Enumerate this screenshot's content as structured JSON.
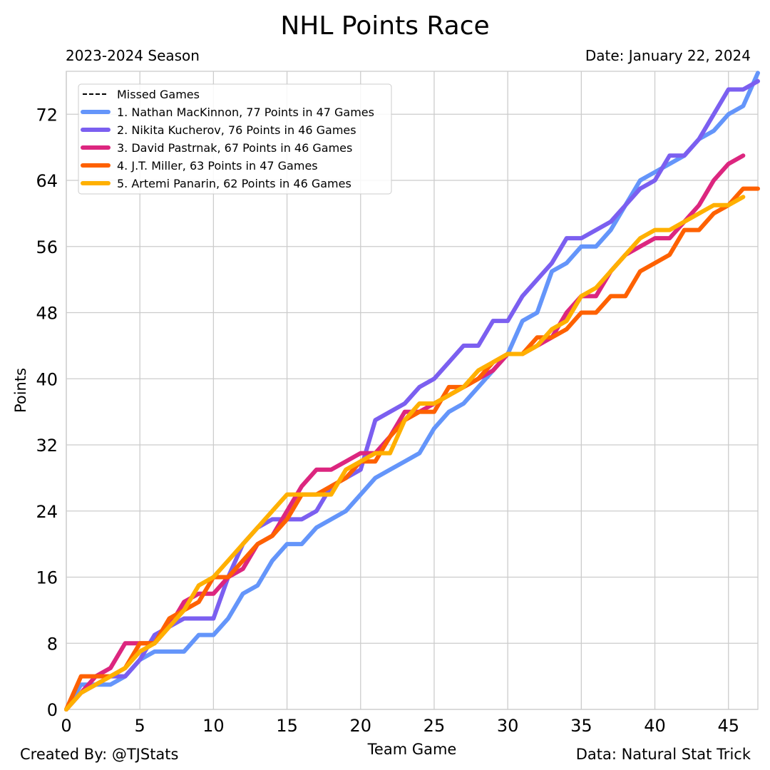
{
  "chart_data": {
    "type": "line",
    "title": "NHL Points Race",
    "subtitle_left": "2023-2024 Season",
    "subtitle_right": "Date: January 22, 2024",
    "xlabel": "Team Game",
    "ylabel": "Points",
    "xlim": [
      0,
      47
    ],
    "ylim": [
      0,
      77.2
    ],
    "xticks": [
      0,
      5,
      10,
      15,
      20,
      25,
      30,
      35,
      40,
      45
    ],
    "yticks": [
      0,
      8,
      16,
      24,
      32,
      40,
      48,
      56,
      64,
      72
    ],
    "grid": true,
    "legend_position": "top-left",
    "legend_missed": "Missed Games",
    "series": [
      {
        "name": "1. Nathan MacKinnon, 77 Points in 47 Games",
        "color": "#6495fa",
        "values": [
          0,
          3,
          3,
          3,
          4,
          6,
          7,
          7,
          7,
          9,
          9,
          11,
          14,
          15,
          18,
          20,
          20,
          22,
          23,
          24,
          26,
          28,
          29,
          30,
          31,
          34,
          36,
          37,
          39,
          41,
          43,
          47,
          48,
          53,
          54,
          56,
          56,
          58,
          61,
          64,
          65,
          66,
          67,
          69,
          70,
          72,
          73,
          77
        ]
      },
      {
        "name": "2. Nikita Kucherov, 76 Points in 46 Games",
        "color": "#7b5ff0",
        "values": [
          0,
          2,
          3,
          4,
          4,
          6,
          9,
          10,
          11,
          11,
          11,
          16,
          20,
          22,
          23,
          23,
          23,
          24,
          27,
          28,
          29,
          35,
          36,
          37,
          39,
          40,
          42,
          44,
          44,
          47,
          47,
          50,
          52,
          54,
          57,
          57,
          58,
          59,
          61,
          63,
          64,
          67,
          67,
          69,
          72,
          75,
          75,
          76
        ]
      },
      {
        "name": "3. David Pastrnak, 67 Points in 46 Games",
        "color": "#dc267f",
        "values": [
          0,
          2,
          4,
          5,
          8,
          8,
          8,
          10,
          13,
          14,
          14,
          16,
          17,
          20,
          21,
          24,
          27,
          29,
          29,
          30,
          31,
          31,
          33,
          36,
          36,
          37,
          38,
          39,
          40,
          41,
          43,
          43,
          44,
          45,
          48,
          50,
          50,
          53,
          55,
          56,
          57,
          57,
          59,
          61,
          64,
          66,
          67
        ]
      },
      {
        "name": "4. J.T. Miller, 63 Points in 47 Games",
        "color": "#fe6100",
        "values": [
          0,
          4,
          4,
          4,
          5,
          8,
          8,
          11,
          12,
          13,
          16,
          16,
          18,
          20,
          21,
          23,
          26,
          26,
          27,
          28,
          30,
          30,
          33,
          35,
          36,
          36,
          39,
          39,
          40,
          42,
          43,
          43,
          45,
          45,
          46,
          48,
          48,
          50,
          50,
          53,
          54,
          55,
          58,
          58,
          60,
          61,
          63,
          63
        ]
      },
      {
        "name": "5. Artemi Panarin, 62 Points in 46 Games",
        "color": "#ffb000",
        "values": [
          0,
          2,
          3,
          4,
          5,
          7,
          8,
          10,
          12,
          15,
          16,
          18,
          20,
          22,
          24,
          26,
          26,
          26,
          26,
          29,
          30,
          31,
          31,
          35,
          37,
          37,
          38,
          39,
          41,
          42,
          43,
          43,
          44,
          46,
          47,
          50,
          51,
          53,
          55,
          57,
          58,
          58,
          59,
          60,
          61,
          61,
          62
        ]
      }
    ]
  },
  "footer": {
    "credit": "Created By: @TJStats",
    "source": "Data: Natural Stat Trick"
  }
}
